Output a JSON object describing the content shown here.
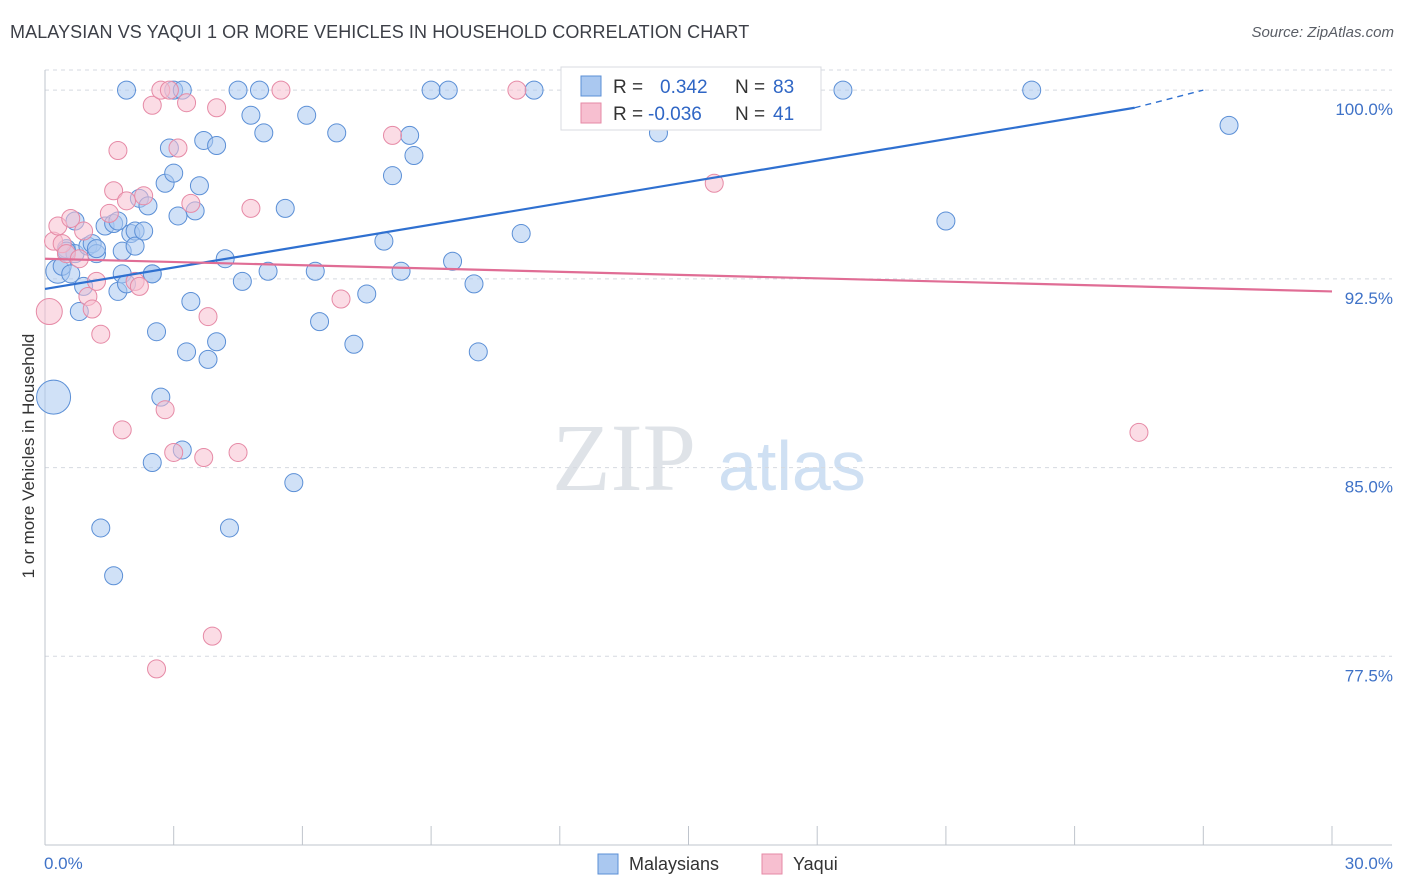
{
  "title": "MALAYSIAN VS YAQUI 1 OR MORE VEHICLES IN HOUSEHOLD CORRELATION CHART",
  "source": "Source: ZipAtlas.com",
  "watermark": {
    "zip": "ZIP",
    "atlas": "atlas"
  },
  "colors": {
    "malaysians_fill": "#aac8f0",
    "malaysians_stroke": "#5b8fd6",
    "malaysians_line": "#2f70d0",
    "yaqui_fill": "#f7bfd0",
    "yaqui_stroke": "#e68aa6",
    "yaqui_line": "#e06d95",
    "grid": "#d5d9e0",
    "tick_text": "#3f72c7"
  },
  "legend": {
    "rows": [
      {
        "r_label": "R = ",
        "r_value": "0.342",
        "n_label": "N = ",
        "n_value": "83"
      },
      {
        "r_label": "R = ",
        "r_value": "-0.036",
        "n_label": "N = ",
        "n_value": "41"
      }
    ]
  },
  "bottom_legend": [
    "Malaysians",
    "Yaqui"
  ],
  "chart_data": {
    "type": "scatter",
    "title": "MALAYSIAN VS YAQUI 1 OR MORE VEHICLES IN HOUSEHOLD CORRELATION CHART",
    "xlabel": "",
    "ylabel": "1 or more Vehicles in Household",
    "xlim": [
      0,
      30
    ],
    "ylim": [
      70.0,
      100.8
    ],
    "x_tick_labels": [
      "0.0%",
      "30.0%"
    ],
    "y_ticks": [
      77.5,
      85.0,
      92.5,
      100.0
    ],
    "y_tick_labels": [
      "77.5%",
      "85.0%",
      "92.5%",
      "100.0%"
    ],
    "grid": "horizontal dashed",
    "legend_position": "top-center",
    "series": [
      {
        "name": "Malaysians",
        "r": 0.342,
        "n": 83,
        "trend": {
          "x": [
            0.0,
            25.4
          ],
          "y": [
            92.1,
            99.3
          ],
          "dashed_to": [
            27.0,
            100.0
          ]
        },
        "points": [
          [
            0.3,
            92.8,
            12
          ],
          [
            0.4,
            93.0,
            9
          ],
          [
            0.5,
            93.7,
            9
          ],
          [
            0.6,
            92.7,
            9
          ],
          [
            0.7,
            93.5,
            9
          ],
          [
            0.7,
            94.8,
            9
          ],
          [
            0.8,
            91.2,
            9
          ],
          [
            0.9,
            92.2,
            9
          ],
          [
            1.0,
            93.8,
            9
          ],
          [
            1.1,
            93.9,
            9
          ],
          [
            1.2,
            93.5,
            9
          ],
          [
            1.2,
            93.7,
            9
          ],
          [
            1.4,
            94.6,
            9
          ],
          [
            1.6,
            94.7,
            9
          ],
          [
            1.7,
            94.8,
            9
          ],
          [
            1.7,
            92.0,
            9
          ],
          [
            1.8,
            93.6,
            9
          ],
          [
            1.8,
            92.7,
            9
          ],
          [
            1.9,
            92.3,
            9
          ],
          [
            2.0,
            94.3,
            9
          ],
          [
            2.1,
            94.4,
            9
          ],
          [
            2.1,
            93.8,
            9
          ],
          [
            2.2,
            95.7,
            9
          ],
          [
            2.3,
            94.4,
            9
          ],
          [
            2.4,
            95.4,
            9
          ],
          [
            2.5,
            92.7,
            9
          ],
          [
            2.5,
            92.7,
            9
          ],
          [
            2.6,
            90.4,
            9
          ],
          [
            2.7,
            87.8,
            9
          ],
          [
            2.8,
            96.3,
            9
          ],
          [
            2.9,
            97.7,
            9
          ],
          [
            3.0,
            96.7,
            9
          ],
          [
            3.0,
            100.0,
            9
          ],
          [
            3.1,
            95.0,
            9
          ],
          [
            3.2,
            85.7,
            9
          ],
          [
            3.3,
            89.6,
            9
          ],
          [
            3.4,
            91.6,
            9
          ],
          [
            3.5,
            95.2,
            9
          ],
          [
            3.6,
            96.2,
            9
          ],
          [
            3.7,
            98.0,
            9
          ],
          [
            3.8,
            89.3,
            9
          ],
          [
            4.0,
            97.8,
            9
          ],
          [
            4.0,
            90.0,
            9
          ],
          [
            4.2,
            93.3,
            9
          ],
          [
            4.3,
            82.6,
            9
          ],
          [
            4.5,
            100.0,
            9
          ],
          [
            4.6,
            92.4,
            9
          ],
          [
            4.8,
            99.0,
            9
          ],
          [
            5.0,
            100.0,
            9
          ],
          [
            5.1,
            98.3,
            9
          ],
          [
            5.2,
            92.8,
            9
          ],
          [
            5.6,
            95.3,
            9
          ],
          [
            5.8,
            84.4,
            9
          ],
          [
            6.1,
            99.0,
            9
          ],
          [
            6.3,
            92.8,
            9
          ],
          [
            6.4,
            90.8,
            9
          ],
          [
            6.8,
            98.3,
            9
          ],
          [
            7.2,
            89.9,
            9
          ],
          [
            7.5,
            91.9,
            9
          ],
          [
            7.9,
            94.0,
            9
          ],
          [
            8.1,
            96.6,
            9
          ],
          [
            8.3,
            92.8,
            9
          ],
          [
            8.5,
            98.2,
            9
          ],
          [
            8.6,
            97.4,
            9
          ],
          [
            9.0,
            100.0,
            9
          ],
          [
            9.4,
            100.0,
            9
          ],
          [
            9.5,
            93.2,
            9
          ],
          [
            10.0,
            92.3,
            9
          ],
          [
            10.1,
            89.6,
            9
          ],
          [
            11.1,
            94.3,
            9
          ],
          [
            11.4,
            100.0,
            9
          ],
          [
            14.3,
            98.3,
            9
          ],
          [
            18.6,
            100.0,
            9
          ],
          [
            21.0,
            94.8,
            9
          ],
          [
            23.0,
            100.0,
            9
          ],
          [
            27.6,
            98.6,
            9
          ],
          [
            0.2,
            87.8,
            17
          ],
          [
            2.5,
            85.2,
            9
          ],
          [
            1.3,
            82.6,
            9
          ],
          [
            1.6,
            80.7,
            9
          ],
          [
            3.2,
            100.0,
            9
          ],
          [
            1.9,
            100.0,
            9
          ],
          [
            0.5,
            93.6,
            9
          ]
        ]
      },
      {
        "name": "Yaqui",
        "r": -0.036,
        "n": 41,
        "trend": {
          "x": [
            0.0,
            30.0
          ],
          "y": [
            93.3,
            92.0
          ]
        },
        "points": [
          [
            0.1,
            91.2,
            13
          ],
          [
            0.2,
            94.0,
            9
          ],
          [
            0.3,
            94.6,
            9
          ],
          [
            0.4,
            93.9,
            9
          ],
          [
            0.5,
            93.5,
            9
          ],
          [
            0.6,
            94.9,
            9
          ],
          [
            0.8,
            93.3,
            9
          ],
          [
            0.9,
            94.4,
            9
          ],
          [
            1.0,
            91.8,
            9
          ],
          [
            1.1,
            91.3,
            9
          ],
          [
            1.2,
            92.4,
            9
          ],
          [
            1.3,
            90.3,
            9
          ],
          [
            1.5,
            95.1,
            9
          ],
          [
            1.6,
            96.0,
            9
          ],
          [
            1.7,
            97.6,
            9
          ],
          [
            1.8,
            86.5,
            9
          ],
          [
            1.9,
            95.6,
            9
          ],
          [
            2.1,
            92.4,
            9
          ],
          [
            2.2,
            92.2,
            9
          ],
          [
            2.3,
            95.8,
            9
          ],
          [
            2.5,
            99.4,
            9
          ],
          [
            2.6,
            77.0,
            9
          ],
          [
            2.7,
            100.0,
            9
          ],
          [
            2.8,
            87.3,
            9
          ],
          [
            2.9,
            100.0,
            9
          ],
          [
            3.0,
            85.6,
            9
          ],
          [
            3.1,
            97.7,
            9
          ],
          [
            3.3,
            99.5,
            9
          ],
          [
            3.4,
            95.5,
            9
          ],
          [
            3.7,
            85.4,
            9
          ],
          [
            3.8,
            91.0,
            9
          ],
          [
            3.9,
            78.3,
            9
          ],
          [
            4.0,
            99.3,
            9
          ],
          [
            4.5,
            85.6,
            9
          ],
          [
            4.8,
            95.3,
            9
          ],
          [
            5.5,
            100.0,
            9
          ],
          [
            6.9,
            91.7,
            9
          ],
          [
            8.1,
            98.2,
            9
          ],
          [
            11.0,
            100.0,
            9
          ],
          [
            15.6,
            96.3,
            9
          ],
          [
            25.5,
            86.4,
            9
          ]
        ]
      }
    ]
  }
}
